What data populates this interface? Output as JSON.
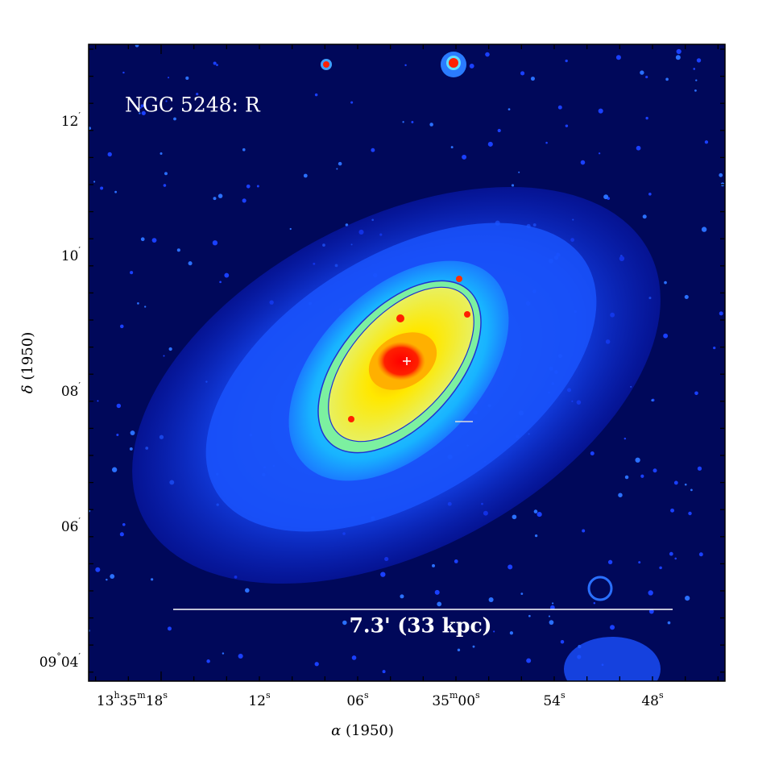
{
  "title": "NGC 5248: R",
  "scale_bar_label": "7.3' (33 kpc)",
  "x_axis_label": {
    "symbol": "α",
    "text": "(1950)"
  },
  "y_axis_label": {
    "symbol": "δ",
    "text": "(1950)"
  },
  "x_tick_labels": [
    [
      "13",
      "h",
      "35",
      "m",
      "18",
      "s"
    ],
    [
      "12",
      "s"
    ],
    [
      "06",
      "s"
    ],
    [
      "35",
      "m",
      "00",
      "s"
    ],
    [
      "54",
      "s"
    ],
    [
      "48",
      "s"
    ]
  ],
  "y_tick_labels": [
    [
      "12",
      "′"
    ],
    [
      "10",
      "′"
    ],
    [
      "08",
      "′"
    ],
    [
      "06",
      "′"
    ],
    [
      "09",
      "°",
      "04",
      "′"
    ]
  ]
}
